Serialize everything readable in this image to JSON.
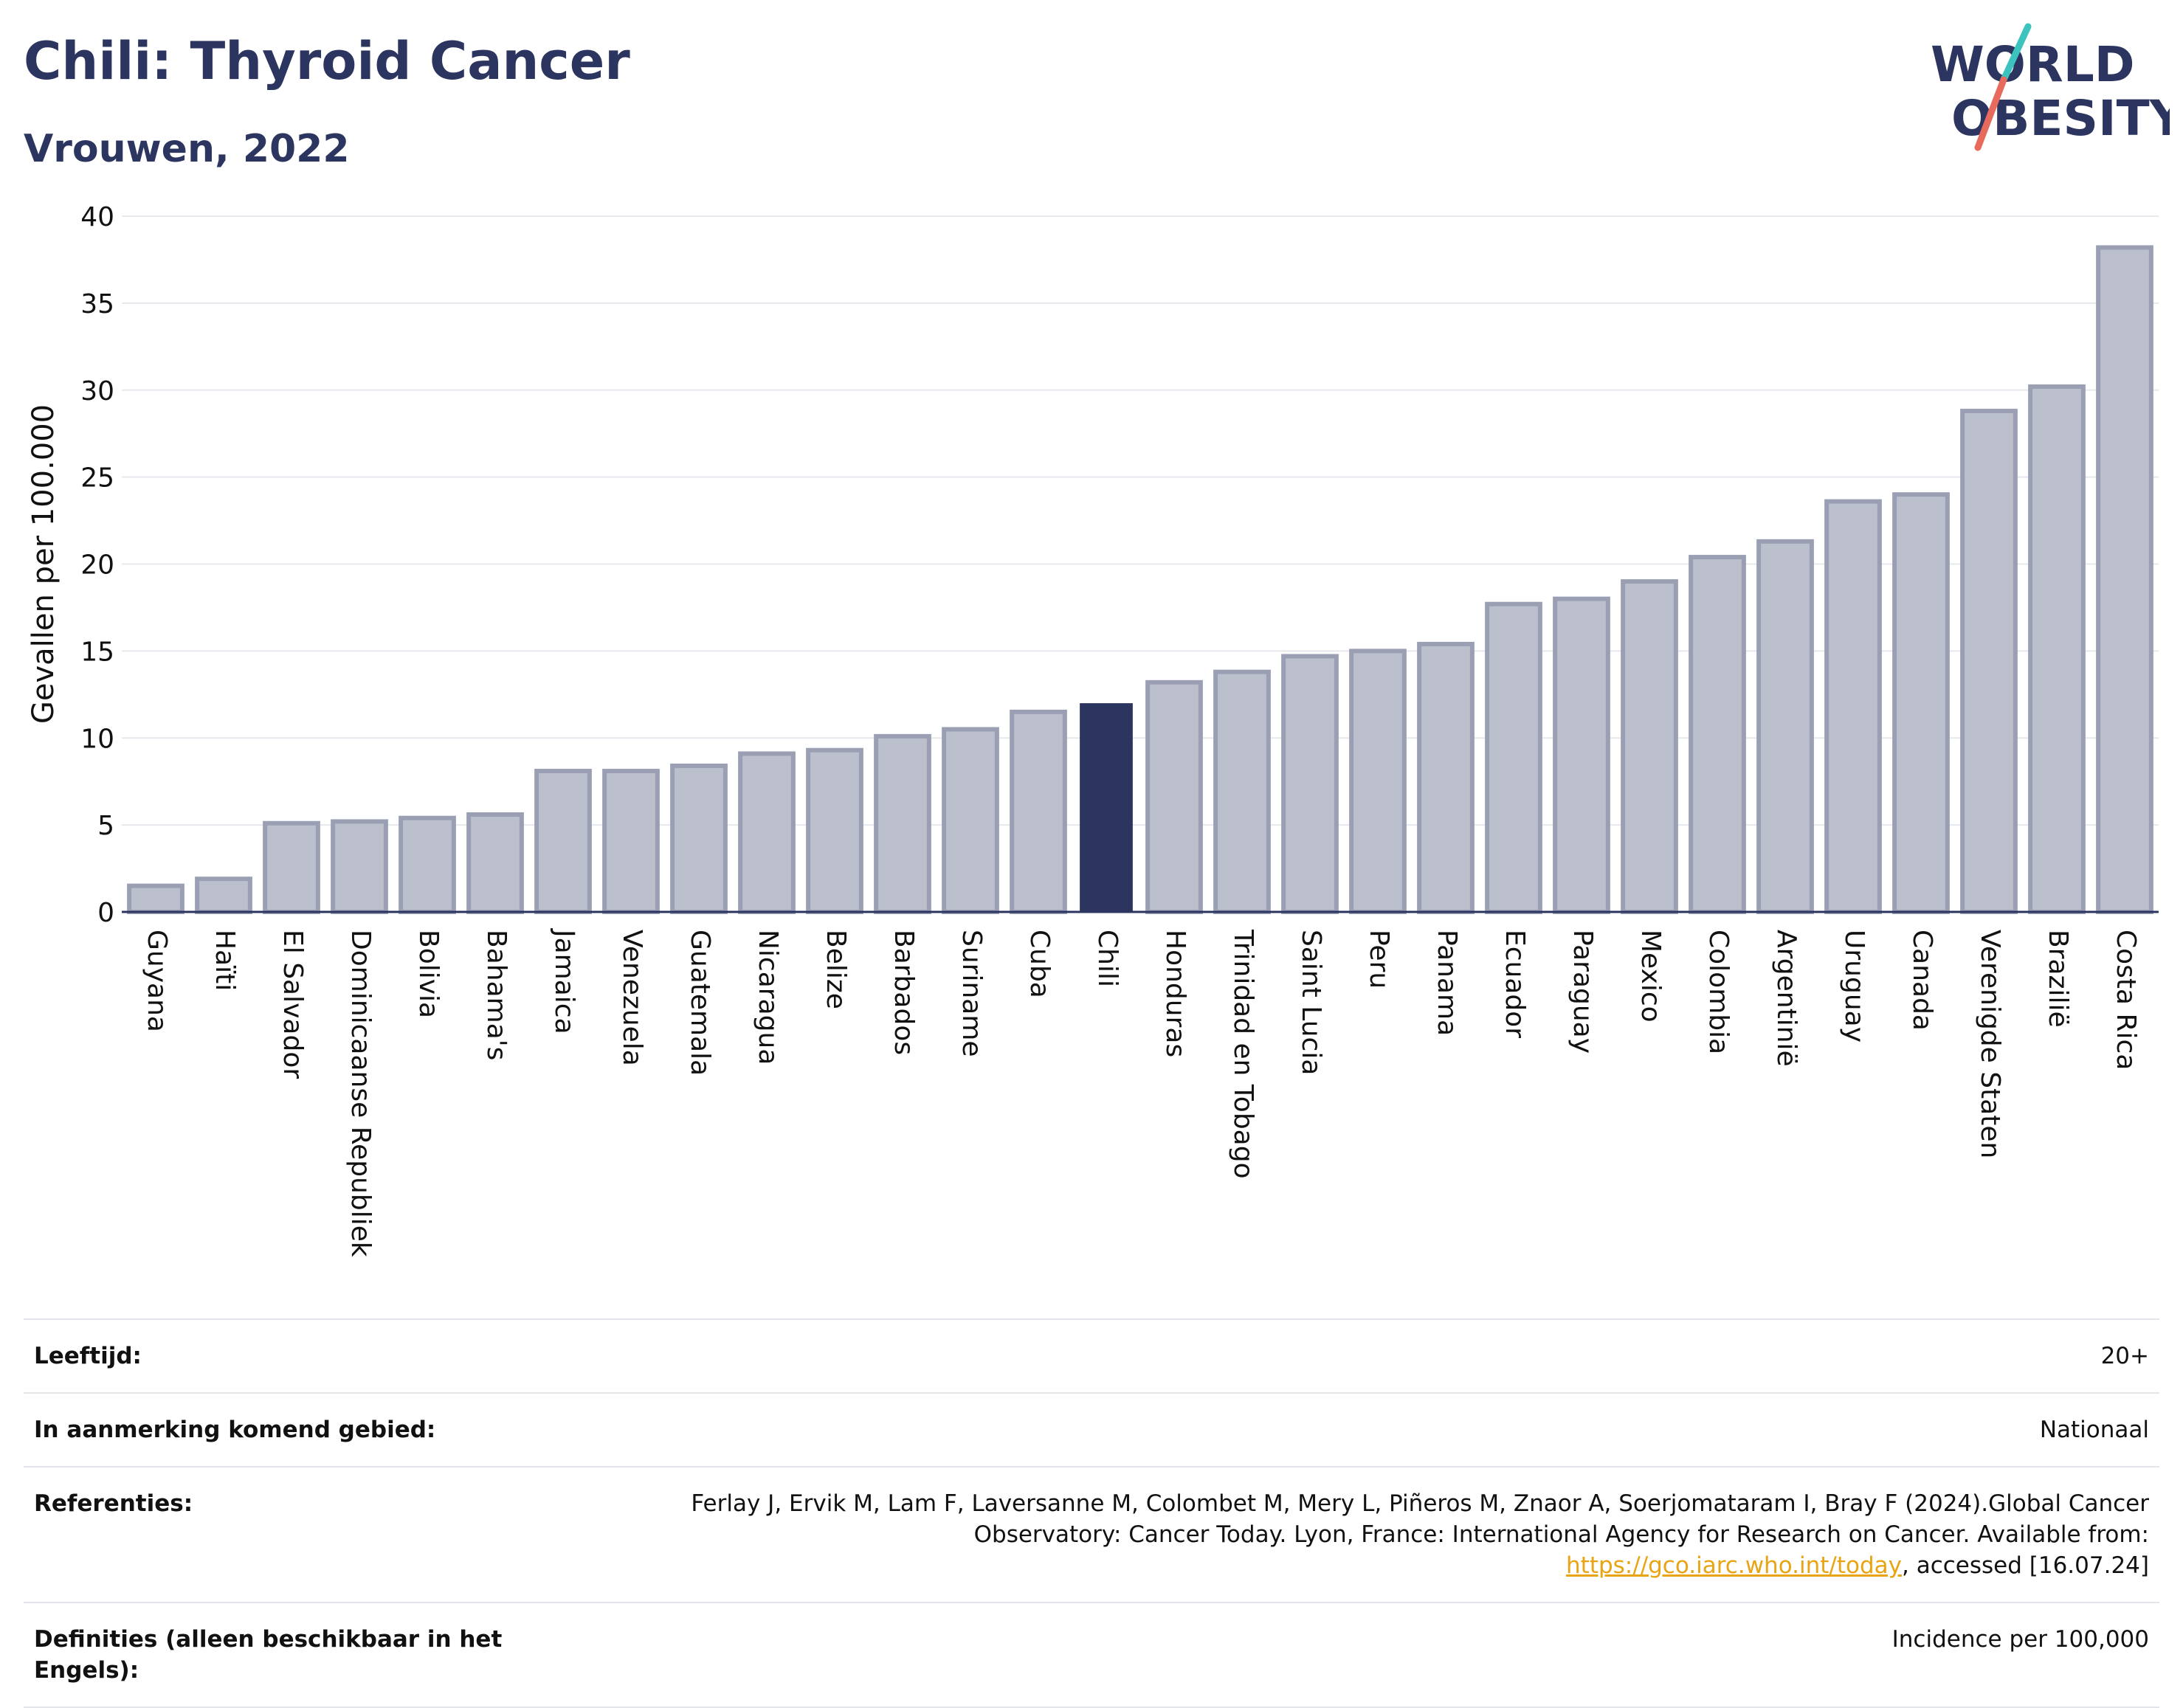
{
  "header": {
    "title": "Chili: Thyroid Cancer",
    "subtitle": "Vrouwen, 2022"
  },
  "logo": {
    "line1": "WORLD",
    "line2": "OBESITY"
  },
  "colors": {
    "bar": "#bcc0cd",
    "bar_stroke": "#9a9fb4",
    "highlight": "#2c3560",
    "title": "#2c3560",
    "grid": "#e6e8ee",
    "logo_text": "#2c3560",
    "logo_slash_teal": "#3cc3bd",
    "logo_slash_red": "#e86a5c",
    "link": "#e8a413"
  },
  "chart_data": {
    "type": "bar",
    "ylabel": "Gevallen per 100.000",
    "xlabel": "",
    "ylim": [
      0,
      40
    ],
    "yticks": [
      0,
      5,
      10,
      15,
      20,
      25,
      30,
      35,
      40
    ],
    "grid": true,
    "highlight": "Chili",
    "categories": [
      "Guyana",
      "Haïti",
      "El Salvador",
      "Dominicaanse Republiek",
      "Bolivia",
      "Bahama's",
      "Jamaica",
      "Venezuela",
      "Guatemala",
      "Nicaragua",
      "Belize",
      "Barbados",
      "Suriname",
      "Cuba",
      "Chili",
      "Honduras",
      "Trinidad en Tobago",
      "Saint Lucia",
      "Peru",
      "Panama",
      "Ecuador",
      "Paraguay",
      "Mexico",
      "Colombia",
      "Argentinië",
      "Uruguay",
      "Canada",
      "Verenigde Staten",
      "Brazilië",
      "Costa Rica"
    ],
    "values": [
      1.5,
      1.9,
      5.1,
      5.2,
      5.4,
      5.6,
      8.1,
      8.1,
      8.4,
      9.1,
      9.3,
      10.1,
      10.5,
      11.5,
      12.0,
      13.2,
      13.8,
      14.7,
      15.0,
      15.4,
      17.7,
      18.0,
      19.0,
      20.4,
      21.3,
      23.6,
      24.0,
      28.8,
      30.2,
      38.2
    ]
  },
  "meta": {
    "age_label": "Leeftijd:",
    "age_value": "20+",
    "area_label": "In aanmerking komend gebied:",
    "area_value": "Nationaal",
    "refs_label": "Referenties:",
    "refs_text": "Ferlay J, Ervik M, Lam F, Laversanne M, Colombet M, Mery L, Piñeros M, Znaor A, Soerjomataram I, Bray F (2024).Global Cancer Observatory: Cancer Today. Lyon, France: International Agency for Research on Cancer. Available from:",
    "refs_link": "https://gco.iarc.who.int/today",
    "refs_tail": ", accessed [16.07.24]",
    "defs_label": "Definities (alleen beschikbaar in het Engels):",
    "defs_value": "Incidence per 100,000"
  }
}
